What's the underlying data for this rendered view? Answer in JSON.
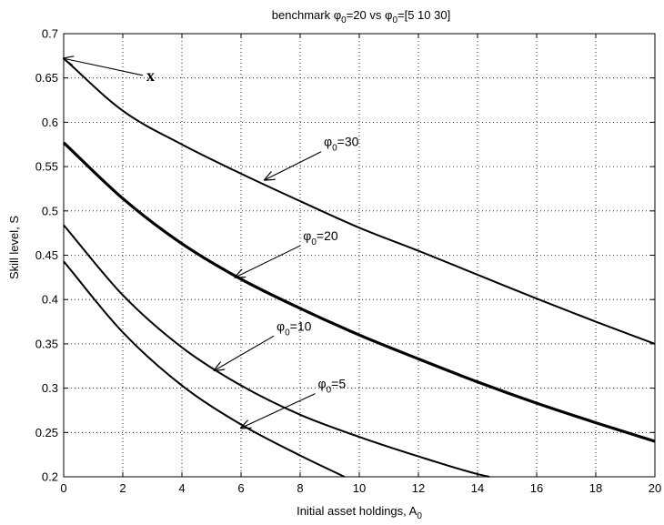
{
  "chart_data": {
    "type": "line",
    "title": "benchmark φ0=20 vs φ0=[5 10 30]",
    "title_parts": {
      "pre": "benchmark ",
      "sym1": "φ",
      "sub1": "0",
      "mid": "=20 vs ",
      "sym2": "φ",
      "sub2": "0",
      "post": "=[5 10 30]"
    },
    "xlabel": "Initial asset holdings, A0",
    "xlabel_parts": {
      "main": "Initial asset holdings, A",
      "sub": "0"
    },
    "ylabel": "Skill level, S",
    "xlim": [
      0,
      20
    ],
    "ylim": [
      0.2,
      0.7
    ],
    "xticks": [
      0,
      2,
      4,
      6,
      8,
      10,
      12,
      14,
      16,
      18,
      20
    ],
    "yticks": [
      0.2,
      0.25,
      0.3,
      0.35,
      0.4,
      0.45,
      0.5,
      0.55,
      0.6,
      0.65,
      0.7
    ],
    "xtick_labels": [
      "0",
      "2",
      "4",
      "6",
      "8",
      "10",
      "12",
      "14",
      "16",
      "18",
      "20"
    ],
    "ytick_labels": [
      "0.2",
      "0.25",
      "0.3",
      "0.35",
      "0.4",
      "0.45",
      "0.5",
      "0.55",
      "0.6",
      "0.65",
      "0.7"
    ],
    "grid": true,
    "grid_style": "dotted",
    "line_color": "#000000",
    "series": [
      {
        "label_sym": "φ",
        "label_sub": "0",
        "label_eq": "=30",
        "bold": false,
        "x": [
          0,
          2,
          4,
          6,
          8,
          10,
          12,
          14,
          16,
          18,
          20
        ],
        "y": [
          0.672,
          0.613,
          0.575,
          0.542,
          0.511,
          0.481,
          0.455,
          0.428,
          0.401,
          0.375,
          0.35
        ]
      },
      {
        "label_sym": "φ",
        "label_sub": "0",
        "label_eq": "=20",
        "bold": true,
        "x": [
          0,
          2,
          4,
          6,
          8,
          10,
          12,
          14,
          16,
          18,
          20
        ],
        "y": [
          0.577,
          0.514,
          0.463,
          0.423,
          0.39,
          0.36,
          0.333,
          0.307,
          0.283,
          0.261,
          0.24
        ]
      },
      {
        "label_sym": "φ",
        "label_sub": "0",
        "label_eq": "=10",
        "bold": false,
        "x": [
          0,
          2,
          4,
          6,
          8,
          10,
          12,
          14,
          14.4
        ],
        "y": [
          0.484,
          0.405,
          0.346,
          0.303,
          0.27,
          0.245,
          0.223,
          0.203,
          0.2
        ]
      },
      {
        "label_sym": "φ",
        "label_sub": "0",
        "label_eq": "=5",
        "bold": false,
        "x": [
          0,
          2,
          4,
          6,
          8,
          9.5
        ],
        "y": [
          0.443,
          0.363,
          0.303,
          0.259,
          0.224,
          0.2
        ]
      }
    ],
    "annotations": [
      {
        "text": "x",
        "style": "bold",
        "text_x": 2.8,
        "text_y": 0.653,
        "arrow_to_x": 0.0,
        "arrow_to_y": 0.672
      },
      {
        "sym": "φ",
        "sub": "0",
        "eq": "=30",
        "text_x": 8.8,
        "text_y": 0.573,
        "arrow_to_x": 6.8,
        "arrow_to_y": 0.535
      },
      {
        "sym": "φ",
        "sub": "0",
        "eq": "=20",
        "text_x": 8.1,
        "text_y": 0.467,
        "arrow_to_x": 5.8,
        "arrow_to_y": 0.425
      },
      {
        "sym": "φ",
        "sub": "0",
        "eq": "=10",
        "text_x": 7.2,
        "text_y": 0.365,
        "arrow_to_x": 5.1,
        "arrow_to_y": 0.32
      },
      {
        "sym": "φ",
        "sub": "0",
        "eq": "=5",
        "text_x": 8.6,
        "text_y": 0.3,
        "arrow_to_x": 6.0,
        "arrow_to_y": 0.255
      }
    ]
  }
}
